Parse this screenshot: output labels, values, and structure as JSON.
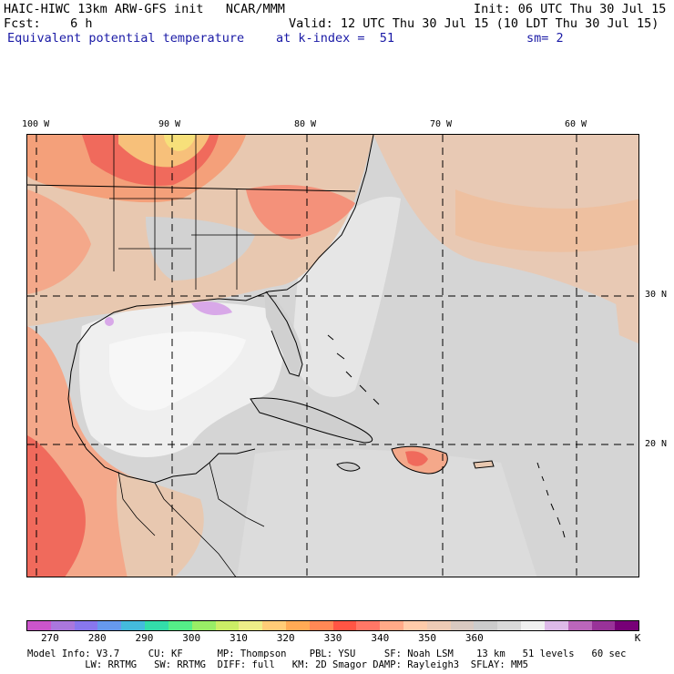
{
  "header": {
    "model_line": "HAIC-HIWC 13km ARW-GFS init   NCAR/MMM",
    "init": "Init: 06 UTC Thu 30 Jul 15",
    "fcst": "Fcst:    6 h",
    "valid": "Valid: 12 UTC Thu 30 Jul 15 (10 LDT Thu 30 Jul 15)",
    "field": "Equivalent potential temperature",
    "level": "at k-index =  51",
    "smooth": "sm= 2"
  },
  "map": {
    "lon_labels": [
      "100 W",
      "90 W",
      "80 W",
      "70 W",
      "60 W"
    ],
    "lat_labels": [
      "30 N",
      "20 N"
    ],
    "colors": {
      "land_gray": "#cccccc",
      "ocean_gray": "#d8d8d8",
      "warm_orange": "#f4a07a",
      "hot_red": "#f06a5c",
      "yellow": "#f7d07a",
      "white": "#f4f4f4",
      "violet": "#d8a8e8"
    }
  },
  "colorbar": {
    "colors": [
      "#cc55cc",
      "#aa77dd",
      "#8877ee",
      "#6699ee",
      "#44bbdd",
      "#33ddaa",
      "#55ee88",
      "#99ee66",
      "#ccee66",
      "#eeee88",
      "#ffcc77",
      "#ffaa55",
      "#ff8855",
      "#ff5544",
      "#ff7766",
      "#ffaa88",
      "#ffccaa",
      "#eecbb5",
      "#d9c9c1",
      "#cccccc",
      "#d9d9d9",
      "#f0f0f0",
      "#ddb9e8",
      "#bb66bb",
      "#993399",
      "#770077"
    ],
    "labels": [
      "270",
      "280",
      "290",
      "300",
      "310",
      "320",
      "330",
      "340",
      "350",
      "360"
    ],
    "unit": "K"
  },
  "footer": {
    "line1": "Model Info: V3.7     CU: KF      MP: Thompson    PBL: YSU     SF: Noah LSM    13 km   51 levels   60 sec",
    "line2": "          LW: RRTMG   SW: RRTMG  DIFF: full   KM: 2D Smagor DAMP: Rayleigh3  SFLAY: MM5"
  }
}
